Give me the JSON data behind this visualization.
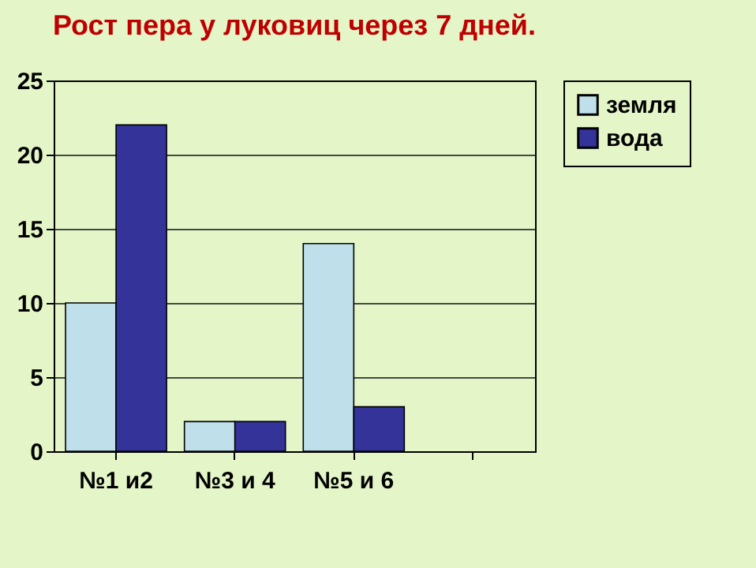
{
  "chart_data": {
    "type": "bar",
    "title": "Рост пера у луковиц через 7 дней.",
    "categories": [
      "№1 и2",
      "№3 и 4",
      "№5 и 6",
      null
    ],
    "series": [
      {
        "name": "земля",
        "color": "#bfe0ea",
        "values": [
          10,
          2,
          14,
          null
        ]
      },
      {
        "name": "вода",
        "color": "#333399",
        "values": [
          22,
          2,
          3,
          null
        ]
      }
    ],
    "ylim": [
      0,
      25
    ],
    "yticks": [
      0,
      5,
      10,
      15,
      20,
      25
    ],
    "grid": "y",
    "legend": "right"
  }
}
